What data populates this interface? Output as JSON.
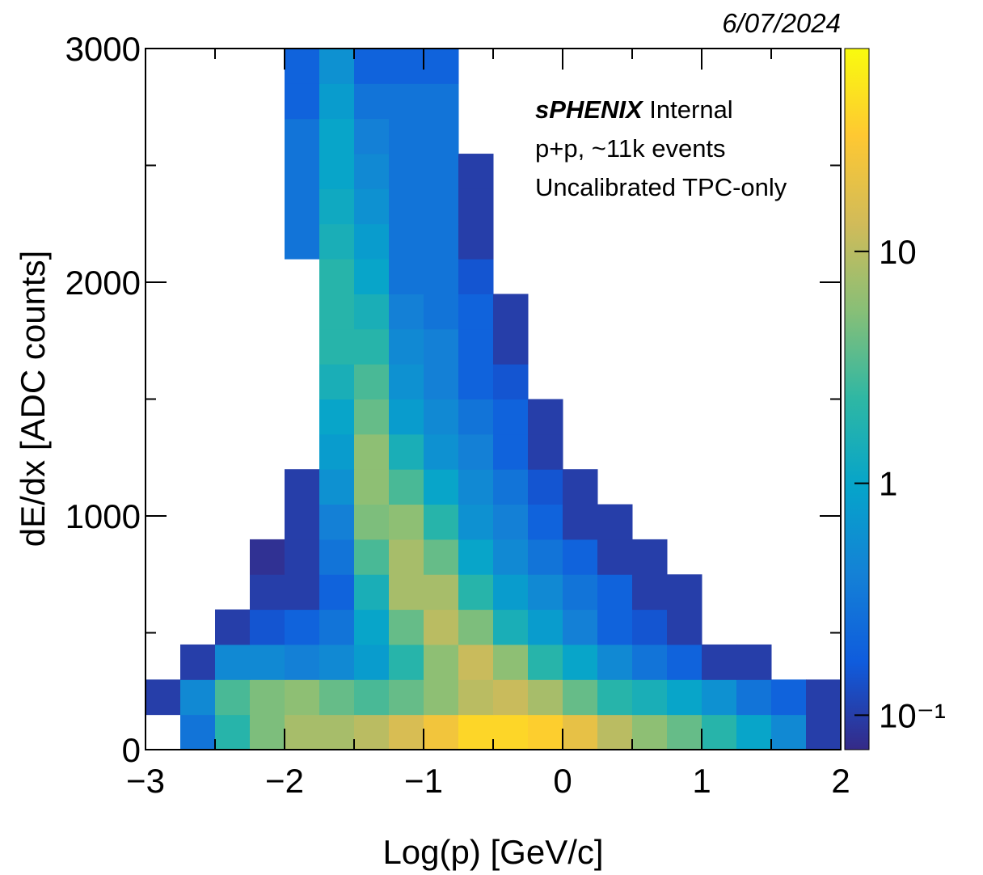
{
  "chart_data": {
    "type": "heatmap",
    "date": "6/07/2024",
    "brand": "sPHENIX",
    "annotations": [
      "Internal",
      "p+p, ~11k events",
      "Uncalibrated TPC-only"
    ],
    "x_label": "Log(p) [GeV/c]",
    "y_label": "dE/dx [ADC counts]",
    "xlim": [
      -3,
      2
    ],
    "ylim": [
      0,
      3000
    ],
    "xticks": [
      {
        "value": -3,
        "label": "−3"
      },
      {
        "value": -2,
        "label": "−2"
      },
      {
        "value": -1,
        "label": "−1"
      },
      0,
      1,
      2
    ],
    "xminorticks": [
      -2.5,
      -1.5,
      -0.5,
      0.5,
      1.5
    ],
    "yticks": [
      0,
      1000,
      2000,
      3000
    ],
    "yminorticks": [
      500,
      1500,
      2500
    ],
    "zlim": [
      0.071,
      75
    ],
    "zscale": "log",
    "zticks": [
      {
        "value": 0.1,
        "label": "10⁻¹"
      },
      1,
      10
    ],
    "colormap": [
      "#352a87",
      "#0f5cdd",
      "#1481d6",
      "#06a4ca",
      "#2eb7a4",
      "#87bf77",
      "#d1bb59",
      "#fec832",
      "#f9fb0e"
    ],
    "x_bins": [
      -3,
      -2.75,
      -2.5,
      -2.25,
      -2,
      -1.75,
      -1.5,
      -1.25,
      -1,
      -0.75,
      -0.5,
      -0.25,
      0,
      0.25,
      0.5,
      0.75,
      1,
      1.25,
      1.5,
      1.75,
      2
    ],
    "y_bins": [
      0,
      150,
      300,
      450,
      600,
      750,
      900,
      1050,
      1200,
      1350,
      1500,
      1650,
      1800,
      1950,
      2100,
      2250,
      2400,
      2550,
      2700,
      2850,
      3000
    ],
    "z": [
      [
        null,
        0.3,
        2,
        5,
        8,
        8,
        10,
        15,
        25,
        40,
        40,
        35,
        20,
        10,
        6,
        4,
        2,
        1,
        0.5,
        0.1
      ],
      [
        0.1,
        0.5,
        3,
        5,
        6,
        4,
        3,
        4,
        6,
        10,
        12,
        8,
        4,
        2,
        1.5,
        1,
        0.6,
        0.3,
        0.2,
        0.1
      ],
      [
        null,
        0.1,
        0.5,
        0.5,
        0.4,
        0.5,
        0.8,
        2,
        6,
        12,
        6,
        2,
        1,
        0.5,
        0.3,
        0.2,
        0.1,
        0.1,
        null,
        null
      ],
      [
        null,
        null,
        0.1,
        0.15,
        0.2,
        0.3,
        1,
        4,
        10,
        5,
        1.5,
        0.8,
        0.4,
        0.2,
        0.15,
        0.1,
        null,
        null,
        null,
        null
      ],
      [
        null,
        null,
        null,
        0.1,
        0.1,
        0.2,
        1.5,
        8,
        8,
        2,
        0.8,
        0.5,
        0.3,
        0.2,
        0.1,
        0.1,
        null,
        null,
        null,
        null
      ],
      [
        null,
        null,
        null,
        0.08,
        0.1,
        0.3,
        3,
        8,
        4,
        1,
        0.5,
        0.3,
        0.2,
        0.1,
        0.1,
        null,
        null,
        null,
        null,
        null
      ],
      [
        null,
        null,
        null,
        null,
        0.1,
        0.4,
        5,
        6,
        2,
        0.6,
        0.4,
        0.2,
        0.1,
        0.1,
        null,
        null,
        null,
        null,
        null,
        null
      ],
      [
        null,
        null,
        null,
        null,
        0.1,
        0.6,
        6,
        3,
        1,
        0.5,
        0.3,
        0.15,
        0.1,
        null,
        null,
        null,
        null,
        null,
        null,
        null
      ],
      [
        null,
        null,
        null,
        null,
        null,
        0.8,
        6,
        1.5,
        0.6,
        0.4,
        0.2,
        0.1,
        null,
        null,
        null,
        null,
        null,
        null,
        null,
        null
      ],
      [
        null,
        null,
        null,
        null,
        null,
        1,
        4,
        0.8,
        0.5,
        0.3,
        0.2,
        0.1,
        null,
        null,
        null,
        null,
        null,
        null,
        null,
        null
      ],
      [
        null,
        null,
        null,
        null,
        null,
        1.5,
        3,
        0.6,
        0.4,
        0.2,
        0.15,
        null,
        null,
        null,
        null,
        null,
        null,
        null,
        null,
        null
      ],
      [
        null,
        null,
        null,
        null,
        null,
        2,
        2,
        0.5,
        0.4,
        0.2,
        0.1,
        null,
        null,
        null,
        null,
        null,
        null,
        null,
        null,
        null
      ],
      [
        null,
        null,
        null,
        null,
        null,
        2,
        1.5,
        0.4,
        0.3,
        0.2,
        0.1,
        null,
        null,
        null,
        null,
        null,
        null,
        null,
        null,
        null
      ],
      [
        null,
        null,
        null,
        null,
        null,
        2,
        1,
        0.3,
        0.3,
        0.15,
        null,
        null,
        null,
        null,
        null,
        null,
        null,
        null,
        null,
        null
      ],
      [
        null,
        null,
        null,
        null,
        0.3,
        1.5,
        0.8,
        0.3,
        0.3,
        0.1,
        null,
        null,
        null,
        null,
        null,
        null,
        null,
        null,
        null,
        null
      ],
      [
        null,
        null,
        null,
        null,
        0.3,
        1.2,
        0.6,
        0.3,
        0.3,
        0.1,
        null,
        null,
        null,
        null,
        null,
        null,
        null,
        null,
        null,
        null
      ],
      [
        null,
        null,
        null,
        null,
        0.3,
        1,
        0.5,
        0.3,
        0.3,
        0.1,
        null,
        null,
        null,
        null,
        null,
        null,
        null,
        null,
        null,
        null
      ],
      [
        null,
        null,
        null,
        null,
        0.3,
        1,
        0.4,
        0.3,
        0.3,
        null,
        null,
        null,
        null,
        null,
        null,
        null,
        null,
        null,
        null,
        null
      ],
      [
        null,
        null,
        null,
        null,
        0.2,
        0.8,
        0.3,
        0.3,
        0.3,
        null,
        null,
        null,
        null,
        null,
        null,
        null,
        null,
        null,
        null,
        null
      ],
      [
        null,
        null,
        null,
        null,
        0.2,
        0.6,
        0.2,
        0.2,
        0.2,
        null,
        null,
        null,
        null,
        null,
        null,
        null,
        null,
        null,
        null,
        null
      ]
    ]
  }
}
